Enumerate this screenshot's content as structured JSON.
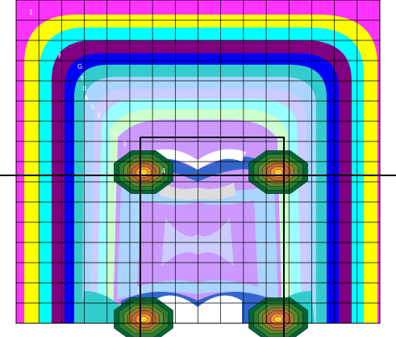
{
  "figure": {
    "colors": {
      "background": "#ffffff",
      "outer_field": "#ff33ff",
      "bands": [
        "#ffff00",
        "#00ffff",
        "#800080",
        "#0000ff",
        "#33cccc",
        "#66cc66",
        "#aad5ff",
        "#ccccff",
        "#99ffff",
        "#3366cc",
        "#ccffcc",
        "#cc99ff",
        "#dddddd"
      ],
      "hotspot": [
        "#006633",
        "#2e7d32",
        "#5d8a2f",
        "#9e7a2a",
        "#c8663a",
        "#ff9933",
        "#ffcc33"
      ],
      "grid": "#000000",
      "overlay_line": "#000000"
    },
    "contour_labels": [
      "1",
      "C",
      "F",
      "G",
      "E",
      "B",
      "A",
      "9",
      "8",
      "7",
      "6",
      "5",
      "4"
    ],
    "grid": {
      "columns": 16,
      "rows": 16
    },
    "elements": [
      {
        "name": "outer-field",
        "type": "plate"
      },
      {
        "name": "contour-bands",
        "type": "nested-contours"
      },
      {
        "name": "hotspot",
        "count": 4
      },
      {
        "name": "interface-line",
        "type": "horizontal-rule"
      },
      {
        "name": "center-window",
        "type": "rectangle"
      }
    ]
  }
}
